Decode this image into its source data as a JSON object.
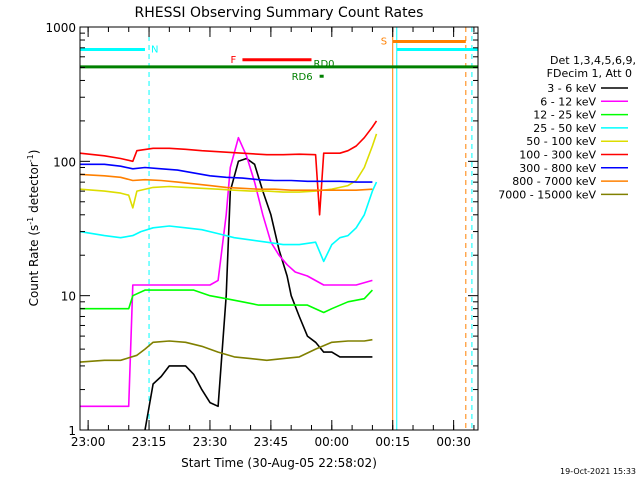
{
  "chart_data": {
    "type": "line",
    "title": "RHESSI Observing Summary Count Rates",
    "xlabel": "Start Time (30-Aug-05 22:58:02)",
    "ylabel_main": "Count Rate (s",
    "ylabel_sup1": "-1",
    "ylabel_mid": " detector",
    "ylabel_sup2": "-1",
    "ylabel_end": ")",
    "yscale": "log",
    "ylim": [
      1,
      1000
    ],
    "xlim_minutes": [
      -2,
      96
    ],
    "x_ticks": [
      {
        "label": "23:00",
        "min": 0
      },
      {
        "label": "23:15",
        "min": 15
      },
      {
        "label": "23:30",
        "min": 30
      },
      {
        "label": "23:45",
        "min": 45
      },
      {
        "label": "00:00",
        "min": 60
      },
      {
        "label": "00:15",
        "min": 75
      },
      {
        "label": "00:30",
        "min": 90
      }
    ],
    "y_ticks": [
      {
        "label": "1",
        "value": 1
      },
      {
        "label": "10",
        "value": 10
      },
      {
        "label": "100",
        "value": 100
      },
      {
        "label": "1000",
        "value": 1000
      }
    ],
    "legend": {
      "placement": "right",
      "header": [
        "Det 1,3,4,5,6,9,",
        "FDecim 1, Att 0"
      ]
    },
    "series": [
      {
        "name": "3 - 6 keV",
        "color": "#000000",
        "points": [
          [
            14,
            1.0
          ],
          [
            16,
            2.2
          ],
          [
            18,
            2.5
          ],
          [
            20,
            3.0
          ],
          [
            24,
            3.0
          ],
          [
            26,
            2.6
          ],
          [
            28,
            2.0
          ],
          [
            30,
            1.6
          ],
          [
            32,
            1.5
          ],
          [
            34,
            10
          ],
          [
            35,
            60
          ],
          [
            37,
            100
          ],
          [
            39,
            105
          ],
          [
            41,
            95
          ],
          [
            43,
            60
          ],
          [
            45,
            40
          ],
          [
            47,
            22
          ],
          [
            49,
            14
          ],
          [
            50,
            10
          ],
          [
            52,
            7
          ],
          [
            54,
            5
          ],
          [
            56,
            4.5
          ],
          [
            58,
            3.8
          ],
          [
            60,
            3.8
          ],
          [
            62,
            3.5
          ],
          [
            64,
            3.5
          ],
          [
            66,
            3.5
          ],
          [
            68,
            3.5
          ],
          [
            70,
            3.5
          ]
        ]
      },
      {
        "name": "6 - 12 keV",
        "color": "#ff00ff",
        "points": [
          [
            -2,
            1.5
          ],
          [
            5,
            1.5
          ],
          [
            10,
            1.5
          ],
          [
            11,
            12
          ],
          [
            14,
            12
          ],
          [
            20,
            12
          ],
          [
            28,
            12
          ],
          [
            30,
            12
          ],
          [
            32,
            13
          ],
          [
            34,
            40
          ],
          [
            35,
            90
          ],
          [
            37,
            150
          ],
          [
            39,
            110
          ],
          [
            41,
            70
          ],
          [
            43,
            40
          ],
          [
            45,
            25
          ],
          [
            47,
            20
          ],
          [
            49,
            17
          ],
          [
            51,
            15
          ],
          [
            54,
            14
          ],
          [
            58,
            12
          ],
          [
            62,
            12
          ],
          [
            66,
            12
          ],
          [
            70,
            13
          ]
        ]
      },
      {
        "name": "12 - 25 keV",
        "color": "#00ff00",
        "points": [
          [
            -2,
            8
          ],
          [
            5,
            8
          ],
          [
            10,
            8
          ],
          [
            11,
            10
          ],
          [
            14,
            11
          ],
          [
            20,
            11
          ],
          [
            26,
            11
          ],
          [
            30,
            10
          ],
          [
            34,
            9.5
          ],
          [
            38,
            9
          ],
          [
            42,
            8.5
          ],
          [
            46,
            8.5
          ],
          [
            50,
            8.5
          ],
          [
            54,
            8.5
          ],
          [
            58,
            7.5
          ],
          [
            60,
            8
          ],
          [
            64,
            9
          ],
          [
            68,
            9.5
          ],
          [
            70,
            11
          ]
        ]
      },
      {
        "name": "25 - 50 keV",
        "color": "#00ffff",
        "points": [
          [
            -2,
            30
          ],
          [
            4,
            28
          ],
          [
            8,
            27
          ],
          [
            11,
            28
          ],
          [
            13,
            30
          ],
          [
            16,
            32
          ],
          [
            20,
            33
          ],
          [
            24,
            32
          ],
          [
            28,
            31
          ],
          [
            32,
            29
          ],
          [
            36,
            27
          ],
          [
            40,
            26
          ],
          [
            44,
            25
          ],
          [
            48,
            24
          ],
          [
            52,
            24
          ],
          [
            56,
            25
          ],
          [
            58,
            18
          ],
          [
            60,
            24
          ],
          [
            62,
            27
          ],
          [
            64,
            28
          ],
          [
            66,
            32
          ],
          [
            68,
            40
          ],
          [
            70,
            60
          ],
          [
            71,
            70
          ]
        ]
      },
      {
        "name": "50 - 100 keV",
        "color": "#dddd00",
        "points": [
          [
            -2,
            62
          ],
          [
            4,
            60
          ],
          [
            8,
            58
          ],
          [
            10,
            56
          ],
          [
            11,
            45
          ],
          [
            12,
            60
          ],
          [
            16,
            64
          ],
          [
            20,
            65
          ],
          [
            24,
            64
          ],
          [
            28,
            63
          ],
          [
            32,
            62
          ],
          [
            36,
            61
          ],
          [
            40,
            60
          ],
          [
            44,
            60
          ],
          [
            48,
            59
          ],
          [
            52,
            59
          ],
          [
            56,
            60
          ],
          [
            60,
            62
          ],
          [
            62,
            64
          ],
          [
            64,
            66
          ],
          [
            66,
            72
          ],
          [
            68,
            90
          ],
          [
            70,
            130
          ],
          [
            71,
            160
          ]
        ]
      },
      {
        "name": "100 - 300 keV",
        "color": "#ff0000",
        "points": [
          [
            -2,
            115
          ],
          [
            4,
            110
          ],
          [
            8,
            105
          ],
          [
            11,
            100
          ],
          [
            12,
            120
          ],
          [
            16,
            125
          ],
          [
            20,
            125
          ],
          [
            24,
            123
          ],
          [
            28,
            120
          ],
          [
            32,
            118
          ],
          [
            36,
            116
          ],
          [
            40,
            114
          ],
          [
            44,
            112
          ],
          [
            48,
            112
          ],
          [
            52,
            113
          ],
          [
            56,
            112
          ],
          [
            57,
            40
          ],
          [
            58,
            115
          ],
          [
            62,
            115
          ],
          [
            64,
            120
          ],
          [
            66,
            130
          ],
          [
            68,
            150
          ],
          [
            70,
            180
          ],
          [
            71,
            200
          ]
        ]
      },
      {
        "name": "300 - 800 keV",
        "color": "#0000ff",
        "points": [
          [
            -2,
            95
          ],
          [
            4,
            95
          ],
          [
            8,
            92
          ],
          [
            11,
            88
          ],
          [
            14,
            90
          ],
          [
            18,
            88
          ],
          [
            22,
            86
          ],
          [
            26,
            82
          ],
          [
            30,
            78
          ],
          [
            34,
            76
          ],
          [
            38,
            75
          ],
          [
            42,
            73
          ],
          [
            46,
            72
          ],
          [
            50,
            72
          ],
          [
            54,
            71
          ],
          [
            58,
            71
          ],
          [
            62,
            71
          ],
          [
            66,
            70
          ],
          [
            70,
            70
          ]
        ]
      },
      {
        "name": "800 - 7000 keV",
        "color": "#ff8000",
        "points": [
          [
            -2,
            80
          ],
          [
            4,
            78
          ],
          [
            8,
            76
          ],
          [
            11,
            72
          ],
          [
            14,
            73
          ],
          [
            18,
            72
          ],
          [
            22,
            70
          ],
          [
            26,
            68
          ],
          [
            30,
            66
          ],
          [
            34,
            64
          ],
          [
            38,
            63
          ],
          [
            42,
            62
          ],
          [
            46,
            62
          ],
          [
            50,
            61
          ],
          [
            54,
            61
          ],
          [
            58,
            61
          ],
          [
            62,
            61
          ],
          [
            66,
            61
          ],
          [
            70,
            62
          ]
        ]
      },
      {
        "name": "7000 - 15000 keV",
        "color": "#808000",
        "points": [
          [
            -2,
            3.2
          ],
          [
            4,
            3.3
          ],
          [
            8,
            3.3
          ],
          [
            12,
            3.6
          ],
          [
            14,
            4.0
          ],
          [
            16,
            4.5
          ],
          [
            20,
            4.6
          ],
          [
            24,
            4.5
          ],
          [
            28,
            4.2
          ],
          [
            32,
            3.8
          ],
          [
            36,
            3.5
          ],
          [
            40,
            3.4
          ],
          [
            44,
            3.3
          ],
          [
            48,
            3.4
          ],
          [
            52,
            3.5
          ],
          [
            56,
            4.0
          ],
          [
            60,
            4.5
          ],
          [
            64,
            4.6
          ],
          [
            68,
            4.6
          ],
          [
            70,
            4.7
          ]
        ]
      }
    ],
    "flags": [
      {
        "label": "N",
        "color": "#00ffff",
        "y": 680,
        "x0": -2,
        "x1": 14
      },
      {
        "label": "F",
        "color": "#ff0000",
        "y": 570,
        "x0": 38,
        "x1": 55
      },
      {
        "label": "RD0",
        "color": "#008000",
        "y": 505,
        "x0": -2,
        "x1": 96
      },
      {
        "label": "RD6",
        "color": "#008000",
        "y": 430,
        "x0": 57,
        "x1": 58
      },
      {
        "label": "S",
        "color": "#ff8000",
        "y": 780,
        "x0": 75,
        "x1": 93
      },
      {
        "label": "",
        "color": "#00ffff",
        "y": 680,
        "x0": 76,
        "x1": 96
      }
    ],
    "vlines": [
      {
        "x": 15,
        "color": "#00ffff",
        "style": "dashed"
      },
      {
        "x": 75,
        "color": "#ff8000",
        "style": "solid"
      },
      {
        "x": 76,
        "color": "#00ffff",
        "style": "solid"
      },
      {
        "x": 93,
        "color": "#ff8000",
        "style": "dashed"
      },
      {
        "x": 94.5,
        "color": "#00ffff",
        "style": "dashed"
      }
    ],
    "footer_timestamp": "19-Oct-2021 15:33"
  }
}
